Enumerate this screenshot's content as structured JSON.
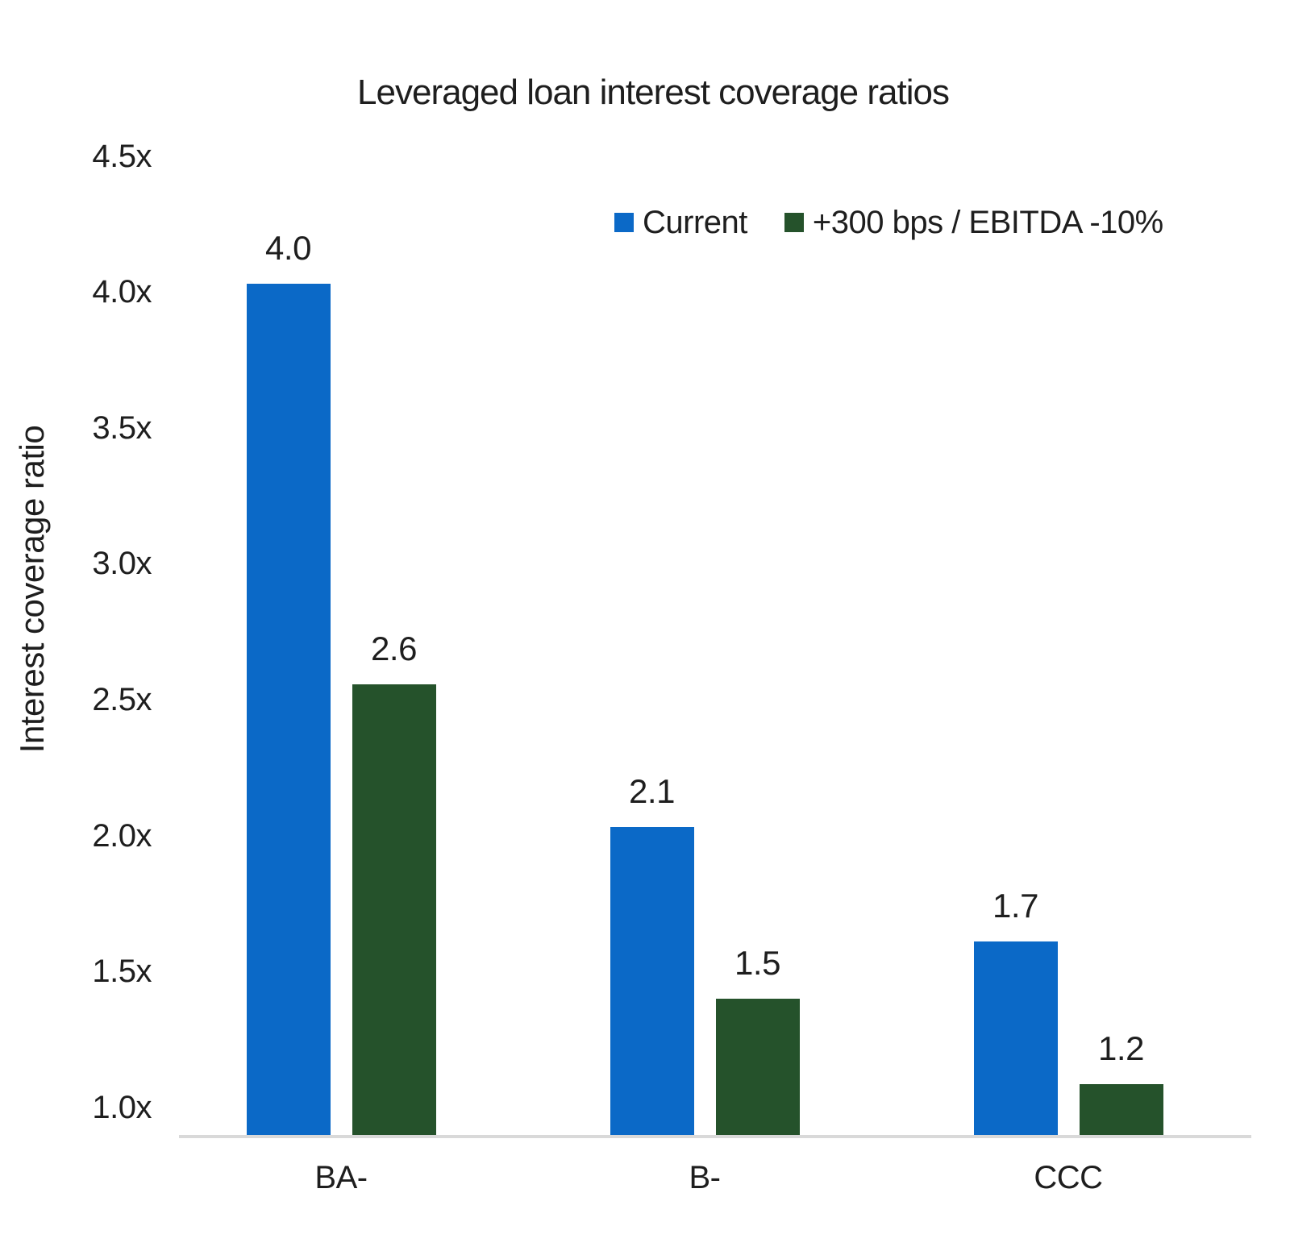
{
  "chart_data": {
    "type": "bar",
    "title": "Leveraged loan interest coverage ratios",
    "ylabel": "Interest coverage ratio",
    "categories": [
      "BA-",
      "B-",
      "CCC"
    ],
    "series": [
      {
        "name": "Current",
        "color": "#0B69C7",
        "values": [
          4.0,
          2.1,
          1.7
        ],
        "value_labels": [
          "4.0",
          "2.1",
          "1.7"
        ]
      },
      {
        "name": "+300 bps / EBITDA -10%",
        "color": "#25522B",
        "values": [
          2.6,
          1.5,
          1.2
        ],
        "value_labels": [
          "2.6",
          "1.5",
          "1.2"
        ]
      }
    ],
    "yticks": [
      {
        "value": 4.5,
        "label": "4.5x"
      },
      {
        "value": 4.0,
        "label": "4.0x"
      },
      {
        "value": 3.5,
        "label": "3.5x"
      },
      {
        "value": 3.0,
        "label": "3.0x"
      },
      {
        "value": 2.5,
        "label": "2.5x"
      },
      {
        "value": 2.0,
        "label": "2.0x"
      },
      {
        "value": 1.5,
        "label": "1.5x"
      },
      {
        "value": 1.0,
        "label": "1.0x"
      }
    ],
    "ylim": [
      0.9,
      4.6
    ],
    "grid": false,
    "legend_position": "top-right",
    "axis_line_color": "#D9D9D9",
    "text_color": "#1E1E1E",
    "background": "#FFFFFF"
  }
}
